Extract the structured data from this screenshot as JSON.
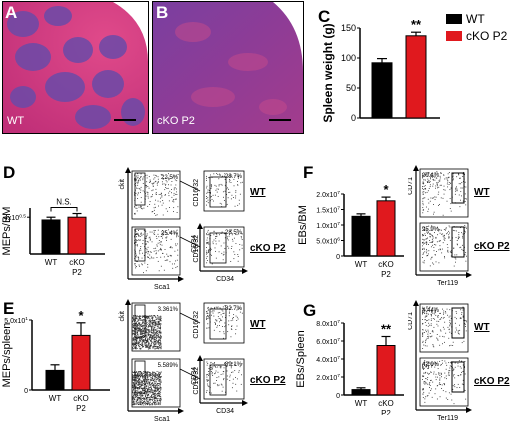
{
  "panels": {
    "A": {
      "letter": "A",
      "label": "WT"
    },
    "B": {
      "letter": "B",
      "label": "cKO P2"
    },
    "C": {
      "letter": "C",
      "legend": [
        "WT",
        "cKO P2"
      ],
      "significance": "**",
      "chart_data": {
        "type": "bar",
        "categories": [
          "WT",
          "cKO P2"
        ],
        "values": [
          92,
          137
        ],
        "errors": [
          7,
          6
        ],
        "ylabel": "Spleen weight (g)",
        "yticks": [
          "0",
          "50",
          "100",
          "150"
        ],
        "ylim": [
          0,
          150
        ],
        "colors": [
          "#000000",
          "#e0191e"
        ]
      }
    },
    "D": {
      "letter": "D",
      "significance": "N.S.",
      "chart_data": {
        "type": "bar",
        "categories": [
          "WT",
          "cKO P2"
        ],
        "values": [
          3.7,
          4.0
        ],
        "errors": [
          0.3,
          0.4
        ],
        "ylabel": "MEPs/BM",
        "yticks": [
          "4x10^0.5"
        ],
        "ylim": [
          0,
          5
        ],
        "colors": [
          "#000000",
          "#e0191e"
        ]
      },
      "flow": {
        "left": {
          "y": "ckit",
          "x": "Sca1",
          "gates": [
            "22.5%",
            "25.4%"
          ]
        },
        "right": {
          "y": "CD16/32",
          "x": "CD34",
          "gates": [
            "28.7%",
            "28.5%"
          ]
        },
        "rows": [
          "WT",
          "cKO P2"
        ]
      }
    },
    "E": {
      "letter": "E",
      "significance": "*",
      "chart_data": {
        "type": "bar",
        "categories": [
          "WT",
          "cKO P2"
        ],
        "values": [
          1.4,
          3.9
        ],
        "errors": [
          0.4,
          0.9
        ],
        "ylabel": "MEPs/spleen",
        "yticks": [
          "0",
          "5.0x10^1"
        ],
        "ylim": [
          0,
          5
        ],
        "colors": [
          "#000000",
          "#e0191e"
        ]
      },
      "flow": {
        "left": {
          "y": "ckit",
          "x": "Sca1",
          "gates": [
            "3.361%",
            "5.589%"
          ]
        },
        "right": {
          "y": "CD16/32",
          "x": "CD34",
          "gates": [
            "82.7%",
            "89.1%"
          ]
        },
        "rows": [
          "WT",
          "cKO P2"
        ]
      }
    },
    "F": {
      "letter": "F",
      "significance": "*",
      "chart_data": {
        "type": "bar",
        "categories": [
          "WT",
          "cKO P2"
        ],
        "values": [
          12.8,
          17.8
        ],
        "errors": [
          0.8,
          1.2
        ],
        "ylabel": "EBs/BM",
        "yticks": [
          "0",
          "5.0x10^6",
          "1.0x10^7",
          "1.5x10^7",
          "2.0x10^7"
        ],
        "ylim": [
          0,
          20
        ],
        "colors": [
          "#000000",
          "#e0191e"
        ]
      },
      "flow": {
        "plot": {
          "y": "CD71",
          "x": "Ter119",
          "gates": [
            "20.4%",
            "25.9%"
          ]
        },
        "rows": [
          "WT",
          "cKO P2"
        ]
      }
    },
    "G": {
      "letter": "G",
      "significance": "**",
      "chart_data": {
        "type": "bar",
        "categories": [
          "WT",
          "cKO P2"
        ],
        "values": [
          0.6,
          5.5
        ],
        "errors": [
          0.2,
          1.0
        ],
        "ylabel": "EBs/Spleen",
        "yticks": [
          "0",
          "2.0x10^7",
          "4.0x10^7",
          "6.0x10^7",
          "8.0x10^7"
        ],
        "ylim": [
          0,
          8
        ],
        "colors": [
          "#000000",
          "#e0191e"
        ]
      },
      "flow": {
        "plot": {
          "y": "CD71",
          "x": "Ter119",
          "gates": [
            "4.44%",
            "42.9%"
          ]
        },
        "rows": [
          "WT",
          "cKO P2"
        ]
      }
    }
  }
}
